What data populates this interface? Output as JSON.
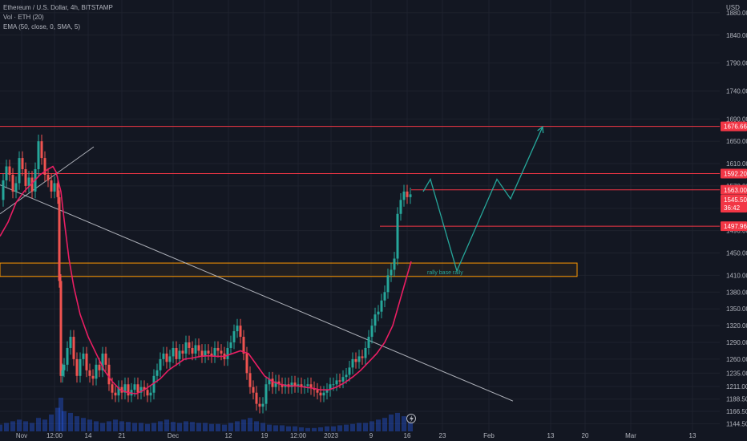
{
  "header": {
    "symbol_line": "Ethereum / U.S. Dollar, 4h, BITSTAMP",
    "volume_indicator": "Vol · ETH (20)",
    "ema_indicator": "EMA (50, close, 0, SMA, 5)"
  },
  "colors": {
    "background": "#131722",
    "grid": "#1e222d",
    "bullish": "#26a69a",
    "bearish": "#ef5350",
    "ema": "#e91e63",
    "resistance_line": "#f23645",
    "support_zone": "#ff9800",
    "trendline": "#d1d4dc",
    "projection": "#26a69a",
    "volume": "#2962ff"
  },
  "chart_data": {
    "type": "candlestick",
    "title": "Ethereum / U.S. Dollar, 4h, BITSTAMP",
    "y_unit": "USD",
    "ylim": [
      1135,
      1900
    ],
    "y_ticks": [
      1880,
      1840,
      1790,
      1740,
      1690,
      1650,
      1610,
      1570,
      1530,
      1490,
      1450,
      1410,
      1380,
      1350,
      1320,
      1290,
      1260,
      1235,
      1211,
      1188.5,
      1166.5,
      1144.5
    ],
    "y_tick_labels": [
      "1880.00",
      "1840.00",
      "1790.00",
      "1740.00",
      "1690.00",
      "1650.00",
      "1610.00",
      "1570.00",
      "1530.00",
      "1490.00",
      "1450.00",
      "1410.00",
      "1380.00",
      "1350.00",
      "1320.00",
      "1290.00",
      "1260.00",
      "1235.00",
      "1211.00",
      "1188.50",
      "1166.50",
      "1144.50"
    ],
    "x_tick_labels": [
      "Nov",
      "12:00",
      "14",
      "21",
      "Dec",
      "12",
      "19",
      "12:00",
      "2023",
      "9",
      "16",
      "23",
      "Feb",
      "13",
      "20",
      "Mar",
      "13"
    ],
    "price_series": {
      "name": "ETHUSD 4h close (approx.)",
      "x": [
        0,
        4,
        8,
        12,
        16,
        20,
        24,
        28,
        32,
        36,
        40,
        44,
        48,
        52,
        56,
        60,
        64,
        68,
        72,
        74,
        76,
        78,
        80,
        84,
        88,
        92,
        96,
        100,
        104,
        108,
        112,
        116,
        120,
        124,
        128,
        132,
        136,
        140,
        144,
        148,
        152,
        156,
        160,
        164,
        168,
        172,
        176,
        180,
        184,
        188,
        192,
        196,
        200,
        204,
        208,
        212,
        216,
        220,
        224,
        228,
        232,
        236,
        240,
        244,
        248,
        252,
        256,
        260,
        264,
        268,
        272,
        276,
        280,
        284,
        288,
        292,
        296,
        300,
        304,
        308,
        312,
        316,
        320,
        324,
        328,
        332,
        336,
        340,
        344,
        348,
        352,
        356,
        360,
        364,
        368,
        372,
        376,
        380,
        384,
        388,
        392,
        396,
        400,
        404,
        408,
        412,
        416,
        420,
        424,
        428,
        432,
        436,
        440,
        444,
        448,
        452,
        456,
        460,
        464,
        468,
        472,
        476,
        480,
        484,
        488,
        492,
        496,
        500,
        504,
        508,
        512
      ],
      "y": [
        1545,
        1580,
        1605,
        1590,
        1560,
        1575,
        1620,
        1600,
        1570,
        1585,
        1560,
        1600,
        1650,
        1620,
        1590,
        1580,
        1560,
        1575,
        1550,
        1400,
        1230,
        1240,
        1250,
        1280,
        1300,
        1260,
        1230,
        1260,
        1270,
        1240,
        1230,
        1225,
        1250,
        1240,
        1270,
        1250,
        1215,
        1200,
        1195,
        1210,
        1200,
        1215,
        1195,
        1205,
        1215,
        1200,
        1210,
        1205,
        1195,
        1200,
        1230,
        1240,
        1260,
        1270,
        1255,
        1265,
        1280,
        1260,
        1275,
        1270,
        1290,
        1280,
        1270,
        1285,
        1275,
        1265,
        1275,
        1270,
        1265,
        1280,
        1275,
        1270,
        1260,
        1280,
        1290,
        1310,
        1320,
        1300,
        1270,
        1235,
        1210,
        1200,
        1180,
        1175,
        1180,
        1215,
        1225,
        1210,
        1220,
        1215,
        1210,
        1215,
        1210,
        1218,
        1212,
        1215,
        1210,
        1212,
        1215,
        1208,
        1205,
        1200,
        1195,
        1200,
        1205,
        1215,
        1215,
        1222,
        1220,
        1228,
        1232,
        1245,
        1260,
        1255,
        1265,
        1262,
        1280,
        1300,
        1320,
        1340,
        1345,
        1365,
        1380,
        1410,
        1420,
        1440,
        1520,
        1545,
        1560,
        1550,
        1555
      ]
    },
    "ema_series": {
      "name": "EMA (50, close, 0, SMA, 5)",
      "x": [
        0,
        10,
        20,
        30,
        40,
        50,
        60,
        66,
        70,
        76,
        80,
        86,
        92,
        100,
        110,
        120,
        130,
        140,
        150,
        160,
        170,
        180,
        190,
        200,
        210,
        220,
        230,
        240,
        250,
        260,
        270,
        280,
        290,
        300,
        310,
        320,
        330,
        340,
        350,
        360,
        370,
        380,
        390,
        400,
        410,
        420,
        430,
        440,
        450,
        460,
        470,
        480,
        490,
        500,
        510,
        513
      ],
      "y": [
        1480,
        1505,
        1540,
        1560,
        1575,
        1590,
        1600,
        1605,
        1595,
        1560,
        1510,
        1440,
        1390,
        1340,
        1300,
        1270,
        1240,
        1220,
        1205,
        1200,
        1198,
        1205,
        1215,
        1225,
        1240,
        1250,
        1260,
        1262,
        1265,
        1266,
        1265,
        1265,
        1270,
        1275,
        1270,
        1250,
        1230,
        1220,
        1215,
        1212,
        1212,
        1210,
        1208,
        1205,
        1205,
        1210,
        1218,
        1228,
        1240,
        1255,
        1270,
        1290,
        1320,
        1370,
        1420,
        1435
      ]
    },
    "volume_series": {
      "name": "Vol · ETH (20)",
      "x": [
        0,
        8,
        16,
        24,
        32,
        40,
        48,
        56,
        64,
        72,
        76,
        80,
        88,
        96,
        104,
        112,
        120,
        128,
        136,
        144,
        152,
        160,
        168,
        176,
        184,
        192,
        200,
        208,
        216,
        224,
        232,
        240,
        248,
        256,
        264,
        272,
        280,
        288,
        296,
        304,
        312,
        320,
        328,
        336,
        344,
        352,
        360,
        368,
        376,
        384,
        392,
        400,
        408,
        416,
        424,
        432,
        440,
        448,
        456,
        464,
        472,
        480,
        488,
        496,
        504,
        512
      ],
      "y": [
        0.2,
        0.25,
        0.3,
        0.35,
        0.3,
        0.25,
        0.4,
        0.35,
        0.5,
        0.7,
        1.0,
        0.6,
        0.55,
        0.45,
        0.4,
        0.35,
        0.3,
        0.25,
        0.3,
        0.35,
        0.3,
        0.28,
        0.25,
        0.25,
        0.22,
        0.25,
        0.3,
        0.35,
        0.28,
        0.25,
        0.3,
        0.28,
        0.25,
        0.25,
        0.22,
        0.22,
        0.2,
        0.25,
        0.3,
        0.35,
        0.4,
        0.3,
        0.25,
        0.2,
        0.18,
        0.18,
        0.15,
        0.15,
        0.12,
        0.1,
        0.1,
        0.12,
        0.15,
        0.15,
        0.18,
        0.2,
        0.22,
        0.25,
        0.25,
        0.3,
        0.35,
        0.4,
        0.5,
        0.55,
        0.45,
        0.4
      ]
    },
    "horizontal_levels": [
      {
        "price": 1676.66,
        "label": "1676.66"
      },
      {
        "price": 1592.2,
        "label": "1592.20"
      },
      {
        "price": 1563.0,
        "label": "1563.00"
      },
      {
        "price": 1497.96,
        "label": "1497.96"
      }
    ],
    "current_price_tag": {
      "price_label": "1545.50",
      "countdown": "36:42"
    },
    "support_zone": {
      "price_top": 1432,
      "price_bottom": 1408,
      "label": "rally base rally"
    },
    "trendlines": [
      {
        "name": "descending",
        "points": [
          [
            0,
            1572
          ],
          [
            640,
            1185
          ]
        ]
      },
      {
        "name": "ascending",
        "points": [
          [
            0,
            1520
          ],
          [
            117,
            1640
          ]
        ]
      }
    ],
    "projection_path": [
      [
        528,
        1560
      ],
      [
        537,
        1582
      ],
      [
        570,
        1418
      ],
      [
        620,
        1582
      ],
      [
        637,
        1547
      ],
      [
        677,
        1676
      ]
    ],
    "annotation": "rally base rally",
    "settle_icon": "lightning-icon"
  }
}
